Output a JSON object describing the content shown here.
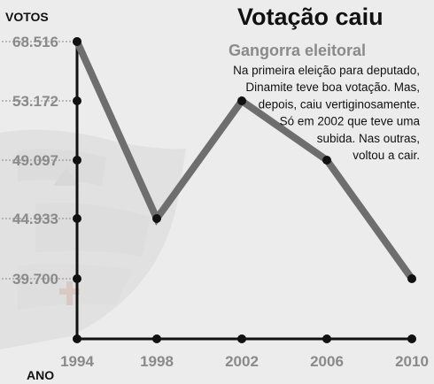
{
  "chart_data": {
    "type": "line",
    "title": "Votação caiu",
    "subtitle": "Gangorra eleitoral",
    "annotation": [
      "Na primeira eleição para deputado,",
      "Dinamite teve boa votação. Mas,",
      "depois, caiu vertiginosamente.",
      "Só em 2002 que teve uma",
      "subida. Nas outras,",
      "voltou a cair."
    ],
    "xlabel": "ANO",
    "ylabel": "VOTOS",
    "categories": [
      "1994",
      "1998",
      "2002",
      "2006",
      "2010"
    ],
    "y_ticks": [
      "68.516",
      "53.172",
      "49.097",
      "44.933",
      "39.700"
    ],
    "series": [
      {
        "values": [
          68516,
          44933,
          53172,
          49097,
          39700
        ]
      }
    ],
    "grid": false,
    "line_color": "#6e6e6e",
    "axis_color": "#111111"
  }
}
